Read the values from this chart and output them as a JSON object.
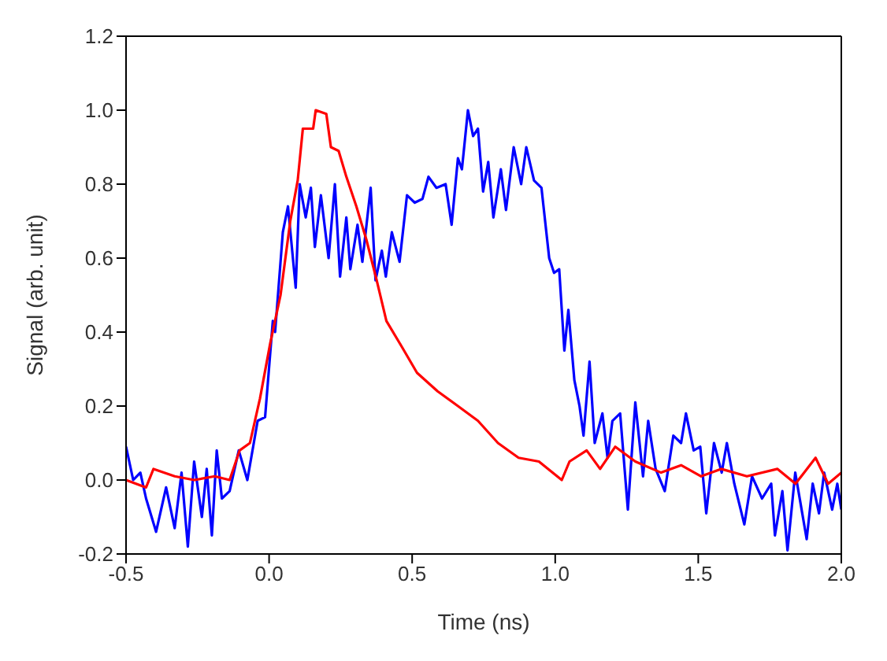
{
  "chart_data": {
    "type": "line",
    "xlabel": "Time (ns)",
    "ylabel": "Signal (arb. unit)",
    "xlim": [
      -0.5,
      2.0
    ],
    "xticks": [
      {
        "value": -0.5,
        "label": "-0.5"
      },
      {
        "value": 0,
        "label": "0.0"
      },
      {
        "value": 0.5,
        "label": "0.5"
      },
      {
        "value": 1,
        "label": "1.0"
      },
      {
        "value": 1.5,
        "label": "1.5"
      },
      {
        "value": 2,
        "label": "2.0"
      }
    ],
    "ylim": [
      -0.2,
      1.2
    ],
    "yticks": [
      {
        "value": -0.2,
        "label": "-0.2"
      },
      {
        "value": 0,
        "label": "0.0"
      },
      {
        "value": 0.2,
        "label": "0.2"
      },
      {
        "value": 0.4,
        "label": "0.4"
      },
      {
        "value": 0.6,
        "label": "0.6"
      },
      {
        "value": 0.8,
        "label": "0.8"
      },
      {
        "value": 1,
        "label": "1.0"
      },
      {
        "value": 1.2,
        "label": "1.2"
      }
    ],
    "marker": "none",
    "line_style": "solid",
    "series": [
      {
        "color": "#0000ff",
        "x": [
          -0.5,
          -0.475,
          -0.45,
          -0.43,
          -0.395,
          -0.36,
          -0.33,
          -0.306,
          -0.284,
          -0.262,
          -0.235,
          -0.218,
          -0.2,
          -0.183,
          -0.165,
          -0.138,
          -0.106,
          -0.076,
          -0.04,
          -0.014,
          0.013,
          0.021,
          0.048,
          0.066,
          0.093,
          0.107,
          0.128,
          0.146,
          0.16,
          0.181,
          0.208,
          0.23,
          0.248,
          0.27,
          0.284,
          0.309,
          0.326,
          0.355,
          0.372,
          0.394,
          0.408,
          0.429,
          0.456,
          0.482,
          0.509,
          0.536,
          0.557,
          0.585,
          0.617,
          0.638,
          0.66,
          0.674,
          0.695,
          0.713,
          0.73,
          0.748,
          0.766,
          0.784,
          0.81,
          0.828,
          0.855,
          0.881,
          0.899,
          0.926,
          0.952,
          0.979,
          0.996,
          1.014,
          1.032,
          1.046,
          1.067,
          1.085,
          1.099,
          1.12,
          1.138,
          1.165,
          1.183,
          1.2,
          1.227,
          1.254,
          1.28,
          1.307,
          1.325,
          1.351,
          1.383,
          1.413,
          1.44,
          1.457,
          1.484,
          1.507,
          1.528,
          1.555,
          1.582,
          1.6,
          1.626,
          1.661,
          1.688,
          1.723,
          1.755,
          1.768,
          1.794,
          1.812,
          1.839,
          1.879,
          1.9,
          1.922,
          1.94,
          1.968,
          1.986,
          2.0
        ],
        "values": [
          0.09,
          0.0,
          0.02,
          -0.05,
          -0.14,
          -0.02,
          -0.13,
          0.02,
          -0.18,
          0.05,
          -0.1,
          0.03,
          -0.15,
          0.08,
          -0.05,
          -0.03,
          0.08,
          0.0,
          0.16,
          0.17,
          0.43,
          0.4,
          0.67,
          0.74,
          0.52,
          0.8,
          0.71,
          0.79,
          0.63,
          0.77,
          0.6,
          0.8,
          0.55,
          0.71,
          0.57,
          0.69,
          0.59,
          0.79,
          0.54,
          0.62,
          0.55,
          0.67,
          0.59,
          0.77,
          0.75,
          0.76,
          0.82,
          0.79,
          0.8,
          0.69,
          0.87,
          0.84,
          1.0,
          0.93,
          0.95,
          0.78,
          0.86,
          0.71,
          0.84,
          0.73,
          0.9,
          0.8,
          0.9,
          0.81,
          0.79,
          0.6,
          0.56,
          0.57,
          0.35,
          0.46,
          0.27,
          0.2,
          0.12,
          0.32,
          0.1,
          0.18,
          0.06,
          0.16,
          0.18,
          -0.08,
          0.21,
          0.01,
          0.16,
          0.03,
          -0.03,
          0.12,
          0.1,
          0.18,
          0.08,
          0.09,
          -0.09,
          0.1,
          0.02,
          0.1,
          -0.01,
          -0.12,
          0.01,
          -0.05,
          -0.01,
          -0.15,
          -0.03,
          -0.19,
          0.02,
          -0.16,
          -0.01,
          -0.09,
          0.02,
          -0.08,
          -0.01,
          -0.08
        ]
      },
      {
        "color": "#ff0000",
        "x": [
          -0.5,
          -0.43,
          -0.404,
          -0.33,
          -0.262,
          -0.19,
          -0.138,
          -0.103,
          -0.067,
          -0.032,
          0.004,
          0.04,
          0.074,
          0.1,
          0.118,
          0.154,
          0.163,
          0.2,
          0.216,
          0.243,
          0.27,
          0.305,
          0.34,
          0.376,
          0.41,
          0.464,
          0.517,
          0.589,
          0.66,
          0.73,
          0.8,
          0.872,
          0.943,
          1.023,
          1.05,
          1.11,
          1.157,
          1.21,
          1.28,
          1.37,
          1.44,
          1.51,
          1.58,
          1.67,
          1.777,
          1.84,
          1.91,
          1.954,
          2.0
        ],
        "values": [
          0.0,
          -0.02,
          0.03,
          0.01,
          0.0,
          0.01,
          0.0,
          0.08,
          0.1,
          0.22,
          0.37,
          0.5,
          0.7,
          0.81,
          0.95,
          0.95,
          1.0,
          0.99,
          0.9,
          0.89,
          0.82,
          0.74,
          0.65,
          0.54,
          0.43,
          0.36,
          0.29,
          0.24,
          0.2,
          0.16,
          0.1,
          0.06,
          0.05,
          0.0,
          0.05,
          0.08,
          0.03,
          0.09,
          0.05,
          0.02,
          0.04,
          0.01,
          0.03,
          0.01,
          0.03,
          -0.01,
          0.06,
          -0.01,
          0.02
        ]
      }
    ]
  }
}
